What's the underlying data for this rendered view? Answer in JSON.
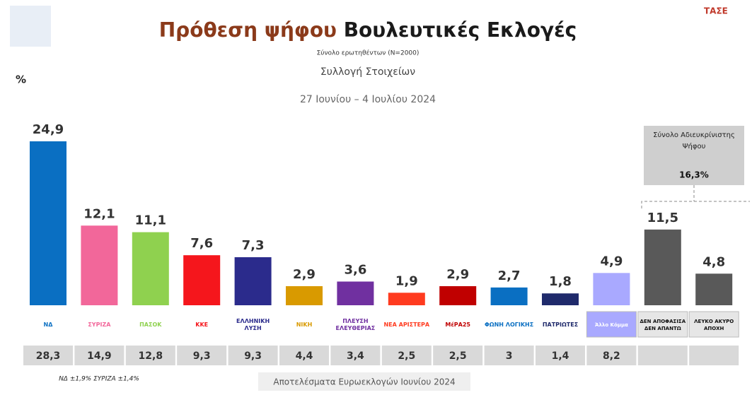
{
  "chart_data": {
    "type": "bar",
    "title": "Πρόθεση ψήφου",
    "title_emphasis": "Βουλευτικές Εκλογές",
    "subtitle": "Σύνολο ερωτηθέντων (Ν=2000)",
    "method": "Συλλογή Στοιχείων",
    "period": "27 Ιουνίου – 4 Ιουλίου 2024",
    "unit": "%",
    "brand": "ΤΑΣΕ",
    "categories": [
      "ΝΔ",
      "ΣΥΡΙΖΑ",
      "ΠΑΣΟΚ",
      "ΚΚΕ",
      "ΕΛΛΗΝΙΚΗ ΛΥΣΗ",
      "ΝΙΚΗ",
      "ΠΛΕΥΣΗ ΕΛΕΥΘΕΡΙΑΣ",
      "ΝΕΑ ΑΡΙΣΤΕΡΑ",
      "ΜέΡΑ25",
      "ΦΩΝΗ ΛΟΓΙΚΗΣ",
      "ΠΑΤΡΙΩΤΕΣ",
      "Άλλο Κόμμα",
      "ΔΕΝ ΑΠΟΦΑΣΙΣΑ ΔΕΝ ΑΠΑΝΤΩ",
      "ΛΕΥΚΟ ΑΚΥΡΟ ΑΠΟΧΗ"
    ],
    "values": [
      24.9,
      12.1,
      11.1,
      7.6,
      7.3,
      2.9,
      3.6,
      1.9,
      2.9,
      2.7,
      1.8,
      4.9,
      11.5,
      4.8
    ],
    "value_labels": [
      "24,9",
      "12,1",
      "11,1",
      "7,6",
      "7,3",
      "2,9",
      "3,6",
      "1,9",
      "2,9",
      "2,7",
      "1,8",
      "4,9",
      "11,5",
      "4,8"
    ],
    "colors": [
      "#0a6fc2",
      "#f2679a",
      "#8fd14f",
      "#f5161c",
      "#2b2b8c",
      "#d99a00",
      "#7030a0",
      "#ff3b1f",
      "#c00000",
      "#0a6fc2",
      "#1f2a6b",
      "#a9a9ff",
      "#595959",
      "#595959"
    ],
    "undecided_box": {
      "text": "Σύνολο Αδιευκρίνιστης Ψήφου",
      "value": 16.3,
      "label": "16,3%"
    },
    "euro_results": [
      28.3,
      14.9,
      12.8,
      9.3,
      9.3,
      4.4,
      3.4,
      2.5,
      2.5,
      3,
      1.4,
      8.2,
      null,
      null
    ],
    "euro_labels": [
      "28,3",
      "14,9",
      "12,8",
      "9,3",
      "9,3",
      "4,4",
      "3,4",
      "2,5",
      "2,5",
      "3",
      "1,4",
      "8,2",
      null,
      null
    ],
    "footnote": "ΝΔ ±1,9% ΣΥΡΙΖΑ ±1,4%",
    "euro_caption": "Αποτελέσματα Ευρωεκλογών Ιουνίου 2024"
  }
}
